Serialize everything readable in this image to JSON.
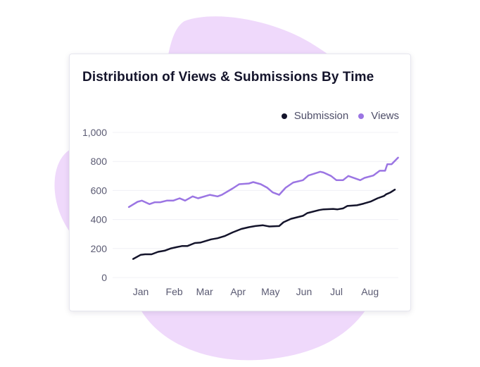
{
  "colors": {
    "background_blob": "#efd9fb",
    "submission": "#14142b",
    "views": "#9b75e3",
    "grid": "#f0f0f6"
  },
  "chart_data": {
    "type": "line",
    "title": "Distribution of Views & Submissions By Time",
    "xlabel": "",
    "ylabel": "",
    "ylim": [
      0,
      1000
    ],
    "yticks": [
      "0",
      "200",
      "400",
      "600",
      "800",
      "1,000"
    ],
    "ytick_values": [
      0,
      200,
      400,
      600,
      800,
      1000
    ],
    "xticks": [
      "Jan",
      "Feb",
      "Mar",
      "Apr",
      "May",
      "Jun",
      "Jul",
      "Aug"
    ],
    "grid": true,
    "legend_position": "top-right",
    "series": [
      {
        "name": "Submission",
        "color": "#14142b",
        "points": [
          [
            "01-08",
            128
          ],
          [
            "01-15",
            157
          ],
          [
            "01-19",
            160
          ],
          [
            "01-25",
            160
          ],
          [
            "01-31",
            177
          ],
          [
            "02-06",
            185
          ],
          [
            "02-12",
            201
          ],
          [
            "02-17",
            209
          ],
          [
            "02-22",
            217
          ],
          [
            "02-27",
            217
          ],
          [
            "03-06",
            238
          ],
          [
            "03-11",
            241
          ],
          [
            "03-21",
            263
          ],
          [
            "03-27",
            271
          ],
          [
            "04-03",
            287
          ],
          [
            "04-10",
            311
          ],
          [
            "04-18",
            335
          ],
          [
            "04-25",
            347
          ],
          [
            "05-01",
            355
          ],
          [
            "05-08",
            360
          ],
          [
            "05-14",
            352
          ],
          [
            "05-23",
            355
          ],
          [
            "05-27",
            381
          ],
          [
            "06-03",
            405
          ],
          [
            "06-14",
            425
          ],
          [
            "06-18",
            444
          ],
          [
            "06-29",
            465
          ],
          [
            "07-03",
            470
          ],
          [
            "07-12",
            473
          ],
          [
            "07-16",
            470
          ],
          [
            "07-21",
            476
          ],
          [
            "07-25",
            493
          ],
          [
            "08-03",
            498
          ],
          [
            "08-09",
            509
          ],
          [
            "08-16",
            525
          ],
          [
            "08-22",
            546
          ],
          [
            "08-28",
            562
          ],
          [
            "08-30",
            574
          ],
          [
            "09-03",
            587
          ],
          [
            "09-07",
            606
          ]
        ]
      },
      {
        "name": "Views",
        "color": "#9b75e3",
        "points": [
          [
            "01-04",
            486
          ],
          [
            "01-12",
            522
          ],
          [
            "01-16",
            530
          ],
          [
            "01-23",
            506
          ],
          [
            "01-28",
            519
          ],
          [
            "02-02",
            519
          ],
          [
            "02-08",
            530
          ],
          [
            "02-14",
            530
          ],
          [
            "02-20",
            546
          ],
          [
            "02-25",
            530
          ],
          [
            "03-04",
            559
          ],
          [
            "03-09",
            546
          ],
          [
            "03-20",
            570
          ],
          [
            "03-27",
            559
          ],
          [
            "03-31",
            570
          ],
          [
            "04-10",
            614
          ],
          [
            "04-16",
            643
          ],
          [
            "04-25",
            648
          ],
          [
            "04-29",
            658
          ],
          [
            "05-06",
            643
          ],
          [
            "05-12",
            619
          ],
          [
            "05-17",
            587
          ],
          [
            "05-23",
            570
          ],
          [
            "05-29",
            619
          ],
          [
            "06-05",
            655
          ],
          [
            "06-14",
            671
          ],
          [
            "06-19",
            703
          ],
          [
            "06-30",
            729
          ],
          [
            "07-03",
            724
          ],
          [
            "07-10",
            700
          ],
          [
            "07-15",
            671
          ],
          [
            "07-21",
            671
          ],
          [
            "07-26",
            700
          ],
          [
            "08-06",
            671
          ],
          [
            "08-10",
            687
          ],
          [
            "08-18",
            703
          ],
          [
            "08-24",
            736
          ],
          [
            "08-29",
            736
          ],
          [
            "08-31",
            781
          ],
          [
            "09-04",
            781
          ],
          [
            "09-10",
            826
          ]
        ]
      }
    ]
  }
}
